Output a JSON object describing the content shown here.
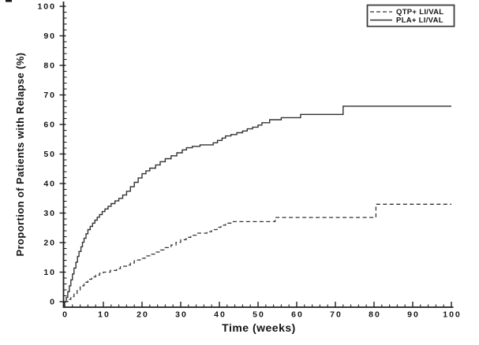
{
  "page": {
    "background": "#ffffff"
  },
  "chart_data": {
    "type": "line",
    "subtype": "kaplan_meier_step",
    "title": "",
    "xlabel": "Time (weeks)",
    "ylabel": "Proportion of Patients with Relapse (%)",
    "xlim": [
      0,
      100
    ],
    "ylim": [
      0,
      100
    ],
    "x_ticks": [
      0,
      10,
      20,
      30,
      40,
      50,
      60,
      70,
      80,
      90,
      100
    ],
    "y_ticks": [
      0,
      10,
      20,
      30,
      40,
      50,
      60,
      70,
      80,
      90,
      100
    ],
    "x_minor_tick_step": 2,
    "y_minor_tick_step": 2,
    "grid": false,
    "legend_position": "top-right",
    "axis_color": "#1f1f1f",
    "curve_color": "#323232",
    "legend_border_color": "#3c3c3c",
    "series": [
      {
        "name": "QTP+ LI/VAL",
        "line_style": "dashed",
        "points": [
          [
            0,
            0
          ],
          [
            0.8,
            0.8
          ],
          [
            1.6,
            1.7
          ],
          [
            2.4,
            2.6
          ],
          [
            3.2,
            4
          ],
          [
            4,
            5.4
          ],
          [
            5,
            6.6
          ],
          [
            6,
            7.6
          ],
          [
            7,
            8.4
          ],
          [
            8,
            9
          ],
          [
            9,
            9.6
          ],
          [
            10,
            10
          ],
          [
            11.8,
            10.6
          ],
          [
            13.4,
            11.2
          ],
          [
            14.4,
            12
          ],
          [
            16,
            12.4
          ],
          [
            17,
            13.1
          ],
          [
            18,
            14.1
          ],
          [
            19.5,
            14.7
          ],
          [
            20.8,
            15.5
          ],
          [
            22,
            16.1
          ],
          [
            23.5,
            16.8
          ],
          [
            24.8,
            17.5
          ],
          [
            26,
            18.3
          ],
          [
            27.5,
            19.2
          ],
          [
            28.8,
            20.1
          ],
          [
            30,
            21
          ],
          [
            31.4,
            21.8
          ],
          [
            32.6,
            22.5
          ],
          [
            34,
            23.2
          ],
          [
            36.8,
            23.7
          ],
          [
            38,
            24.4
          ],
          [
            39.4,
            25.2
          ],
          [
            40.4,
            25.9
          ],
          [
            41.6,
            26.6
          ],
          [
            43,
            27.1
          ],
          [
            54.4,
            28.5
          ],
          [
            80.5,
            33
          ],
          [
            100,
            33
          ]
        ]
      },
      {
        "name": "PLA+ LI/VAL",
        "line_style": "solid",
        "points": [
          [
            0,
            0
          ],
          [
            0.4,
            1.5
          ],
          [
            0.8,
            3.4
          ],
          [
            1.2,
            5.4
          ],
          [
            1.6,
            7.4
          ],
          [
            2,
            9.4
          ],
          [
            2.4,
            11.4
          ],
          [
            2.9,
            13.4
          ],
          [
            3.3,
            15.3
          ],
          [
            3.7,
            17
          ],
          [
            4.2,
            18.6
          ],
          [
            4.6,
            20.1
          ],
          [
            5,
            21.5
          ],
          [
            5.5,
            23
          ],
          [
            6,
            24.4
          ],
          [
            6.6,
            25.5
          ],
          [
            7.2,
            26.6
          ],
          [
            7.8,
            27.6
          ],
          [
            8.4,
            28.6
          ],
          [
            9,
            29.5
          ],
          [
            9.7,
            30.5
          ],
          [
            10.4,
            31.4
          ],
          [
            11.2,
            32.3
          ],
          [
            12,
            33.2
          ],
          [
            13,
            34.1
          ],
          [
            14,
            35
          ],
          [
            15,
            36.1
          ],
          [
            16,
            37.4
          ],
          [
            17,
            38.9
          ],
          [
            18,
            40.4
          ],
          [
            19,
            41.9
          ],
          [
            20,
            43.3
          ],
          [
            21,
            44.3
          ],
          [
            22,
            45.2
          ],
          [
            23.5,
            46.3
          ],
          [
            24.7,
            47.4
          ],
          [
            26,
            48.4
          ],
          [
            27.5,
            49.4
          ],
          [
            29,
            50.4
          ],
          [
            30.4,
            51.4
          ],
          [
            31.5,
            52.1
          ],
          [
            33,
            52.6
          ],
          [
            35,
            53.1
          ],
          [
            38.4,
            53.8
          ],
          [
            39.5,
            54.6
          ],
          [
            40.7,
            55.4
          ],
          [
            41.6,
            56.1
          ],
          [
            43,
            56.6
          ],
          [
            44.5,
            57.2
          ],
          [
            46,
            57.8
          ],
          [
            47.2,
            58.5
          ],
          [
            48.6,
            59.1
          ],
          [
            50,
            59.8
          ],
          [
            51,
            60.6
          ],
          [
            53,
            61.6
          ],
          [
            56,
            62.3
          ],
          [
            61,
            63.4
          ],
          [
            72,
            66.2
          ],
          [
            100,
            66.2
          ]
        ]
      }
    ]
  }
}
